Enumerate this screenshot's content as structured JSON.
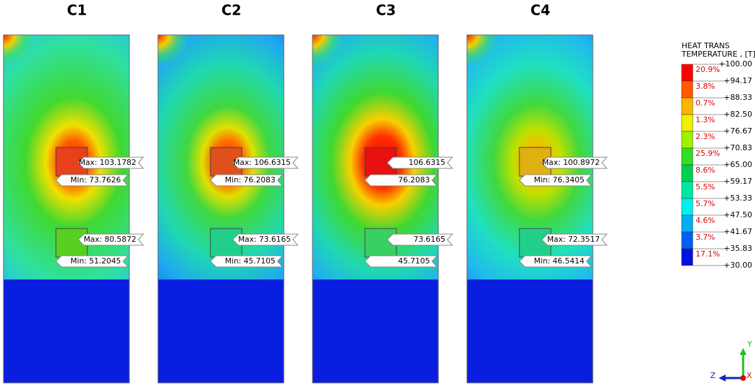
{
  "panels": [
    {
      "title": "C1",
      "labels": [
        "Max: 103.1782",
        "Min: 73.7626",
        "Max: 80.5872",
        "Min: 51.2045"
      ],
      "box_colors": [
        "#e8401a",
        "#58d020"
      ]
    },
    {
      "title": "C2",
      "labels": [
        "Max: 106.6315",
        "Min: 76.2083",
        "Max: 73.6165",
        "Min: 45.7105"
      ],
      "box_colors": [
        "#e0501a",
        "#20d08a"
      ]
    },
    {
      "title": "C3",
      "labels": [
        "106.6315",
        "76.2083",
        "73.6165",
        "45.7105"
      ],
      "box_colors": [
        "#e81010",
        "#38d060"
      ]
    },
    {
      "title": "C4",
      "labels": [
        "Max: 100.8972",
        "Min: 76.3405",
        "Max: 72.3517",
        "Min: 46.5414"
      ],
      "box_colors": [
        "#e0b010",
        "#20d08a"
      ]
    }
  ],
  "legend": {
    "title": [
      "HEAT TRANS",
      "TEMPERATURE , [T]"
    ],
    "levels": [
      "+100.00",
      "+94.17",
      "+88.33",
      "+82.50",
      "+76.67",
      "+70.83",
      "+65.00",
      "+59.17",
      "+53.33",
      "+47.50",
      "+41.67",
      "+35.83",
      "+30.00"
    ],
    "percentages": [
      "20.9%",
      "3.8%",
      "0.7%",
      "1.3%",
      "2.3%",
      "25.9%",
      "8.6%",
      "5.5%",
      "5.7%",
      "4.6%",
      "3.7%",
      "17.1%"
    ],
    "colors": [
      "#ff0000",
      "#ff5a00",
      "#ffb400",
      "#f0f000",
      "#a0f000",
      "#30e020",
      "#00d050",
      "#00e8a0",
      "#00f0f0",
      "#00b0f0",
      "#0060f0",
      "#0010e0"
    ]
  },
  "triad": {
    "y": "Y",
    "z": "Z",
    "x": "X"
  }
}
